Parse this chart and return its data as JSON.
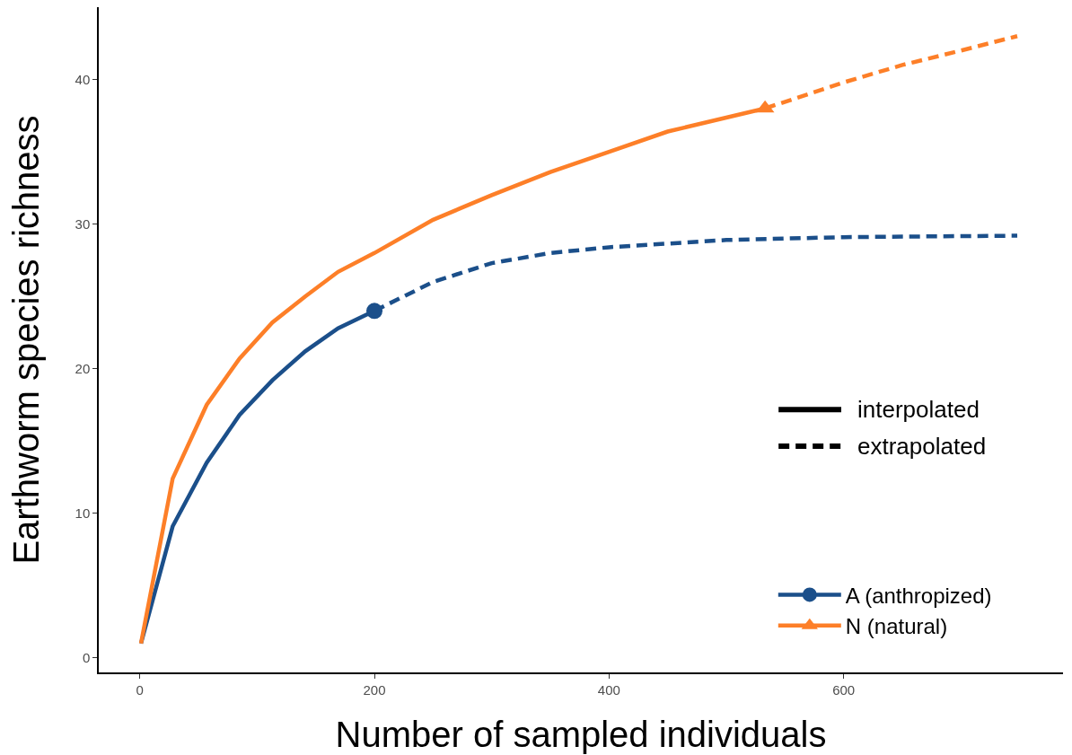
{
  "chart_data": {
    "type": "line",
    "xlabel": "Number of sampled individuals",
    "ylabel": "Earthworm species richness",
    "xlim": [
      -35,
      787
    ],
    "ylim": [
      -1,
      45
    ],
    "xticks": [
      0,
      200,
      400,
      600
    ],
    "yticks": [
      0,
      10,
      20,
      30,
      40
    ],
    "grid": false,
    "legend": "bottom right",
    "annotations": [
      "interpolated",
      "extrapolated"
    ],
    "series": [
      {
        "color": "#1b4f8a",
        "line_style": "solid",
        "x": [
          1,
          28,
          57,
          85,
          113,
          141,
          169,
          200
        ],
        "values": [
          1,
          9.1,
          13.5,
          16.8,
          19.2,
          21.2,
          22.8,
          24.0
        ]
      },
      {
        "color": "#1b4f8a",
        "line_style": "dashed",
        "x": [
          200,
          250,
          300,
          350,
          400,
          500,
          600,
          748
        ],
        "values": [
          24.0,
          26.0,
          27.3,
          28.0,
          28.4,
          28.9,
          29.1,
          29.2
        ]
      },
      {
        "type": "scatter",
        "name": "A (anthropized)",
        "color": "#1b4f8a",
        "marker": "circle",
        "x": [
          200
        ],
        "values": [
          24.0
        ]
      },
      {
        "color": "#fd7f28",
        "line_style": "solid",
        "x": [
          1,
          28,
          57,
          85,
          113,
          141,
          169,
          200,
          250,
          300,
          350,
          400,
          450,
          533
        ],
        "values": [
          1,
          12.4,
          17.5,
          20.7,
          23.2,
          25.0,
          26.7,
          28.0,
          30.3,
          32.0,
          33.6,
          35.0,
          36.4,
          38.0
        ]
      },
      {
        "color": "#fd7f28",
        "line_style": "dashed",
        "x": [
          533,
          600,
          650,
          700,
          748
        ],
        "values": [
          38.0,
          39.8,
          41.0,
          42.0,
          43.0
        ]
      },
      {
        "type": "scatter",
        "name": "N (natural)",
        "color": "#fd7f28",
        "marker": "triangle",
        "x": [
          533
        ],
        "values": [
          38.0
        ]
      }
    ]
  }
}
